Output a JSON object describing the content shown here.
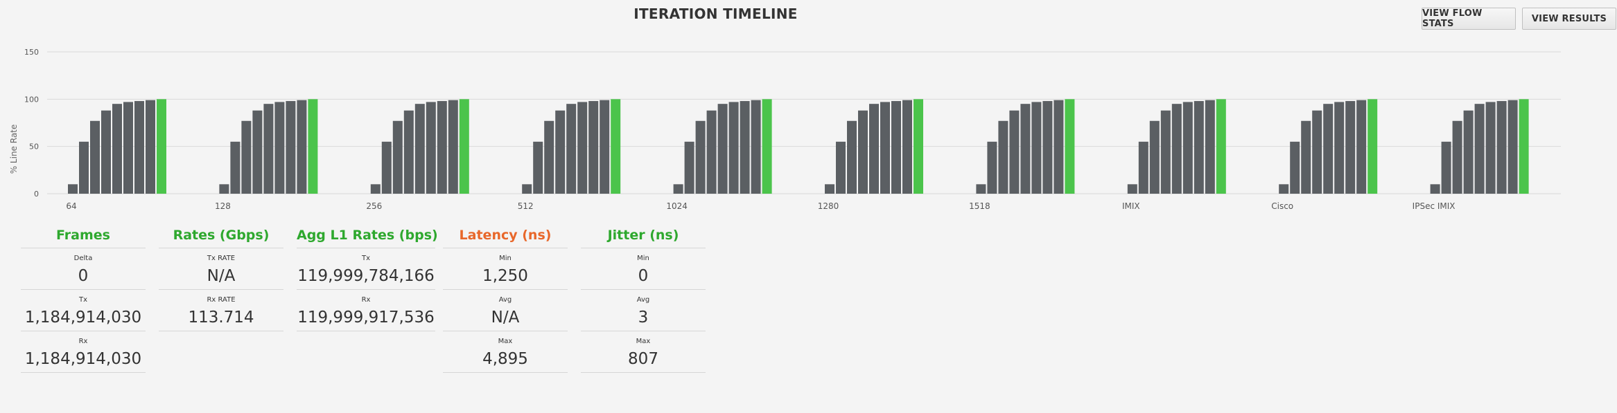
{
  "header": {
    "title": "ITERATION TIMELINE",
    "view_flow_stats_label": "VIEW FLOW STATS",
    "view_results_label": "VIEW RESULTS"
  },
  "chart_data": {
    "type": "bar",
    "ylabel": "% Line Rate",
    "ylim": [
      0,
      150
    ],
    "yticks": [
      0,
      50,
      100,
      150
    ],
    "grid": true,
    "colors": {
      "iteration": "#5b5f63",
      "final": "#4bc44b",
      "grid": "#d9d9d9"
    },
    "groups": [
      {
        "label": "64",
        "values": [
          10,
          55,
          77,
          88,
          95,
          97,
          98,
          99,
          100
        ]
      },
      {
        "label": "128",
        "values": [
          10,
          55,
          77,
          88,
          95,
          97,
          98,
          99,
          100
        ]
      },
      {
        "label": "256",
        "values": [
          10,
          55,
          77,
          88,
          95,
          97,
          98,
          99,
          100
        ]
      },
      {
        "label": "512",
        "values": [
          10,
          55,
          77,
          88,
          95,
          97,
          98,
          99,
          100
        ]
      },
      {
        "label": "1024",
        "values": [
          10,
          55,
          77,
          88,
          95,
          97,
          98,
          99,
          100
        ]
      },
      {
        "label": "1280",
        "values": [
          10,
          55,
          77,
          88,
          95,
          97,
          98,
          99,
          100
        ]
      },
      {
        "label": "1518",
        "values": [
          10,
          55,
          77,
          88,
          95,
          97,
          98,
          99,
          100
        ]
      },
      {
        "label": "IMIX",
        "values": [
          10,
          55,
          77,
          88,
          95,
          97,
          98,
          99,
          100
        ]
      },
      {
        "label": "Cisco",
        "values": [
          10,
          55,
          77,
          88,
          95,
          97,
          98,
          99,
          100
        ]
      },
      {
        "label": "IPSec IMIX",
        "values": [
          10,
          55,
          77,
          88,
          95,
          97,
          98,
          99,
          100
        ]
      }
    ]
  },
  "stats": {
    "frames": {
      "header": "Frames",
      "color": "#2ea82e",
      "rows": [
        {
          "label": "Delta",
          "value": "0"
        },
        {
          "label": "Tx",
          "value": "1,184,914,030"
        },
        {
          "label": "Rx",
          "value": "1,184,914,030"
        }
      ]
    },
    "rates": {
      "header": "Rates (Gbps)",
      "color": "#2ea82e",
      "rows": [
        {
          "label": "Tx RATE",
          "value": "N/A"
        },
        {
          "label": "Rx RATE",
          "value": "113.714"
        }
      ]
    },
    "agg": {
      "header": "Agg L1 Rates (bps)",
      "color": "#2ea82e",
      "rows": [
        {
          "label": "Tx",
          "value": "119,999,784,166"
        },
        {
          "label": "Rx",
          "value": "119,999,917,536"
        }
      ]
    },
    "latency": {
      "header": "Latency (ns)",
      "color": "#e8672a",
      "rows": [
        {
          "label": "Min",
          "value": "1,250"
        },
        {
          "label": "Avg",
          "value": "N/A"
        },
        {
          "label": "Max",
          "value": "4,895"
        }
      ]
    },
    "jitter": {
      "header": "Jitter (ns)",
      "color": "#2ea82e",
      "rows": [
        {
          "label": "Min",
          "value": "0"
        },
        {
          "label": "Avg",
          "value": "3"
        },
        {
          "label": "Max",
          "value": "807"
        }
      ]
    }
  }
}
